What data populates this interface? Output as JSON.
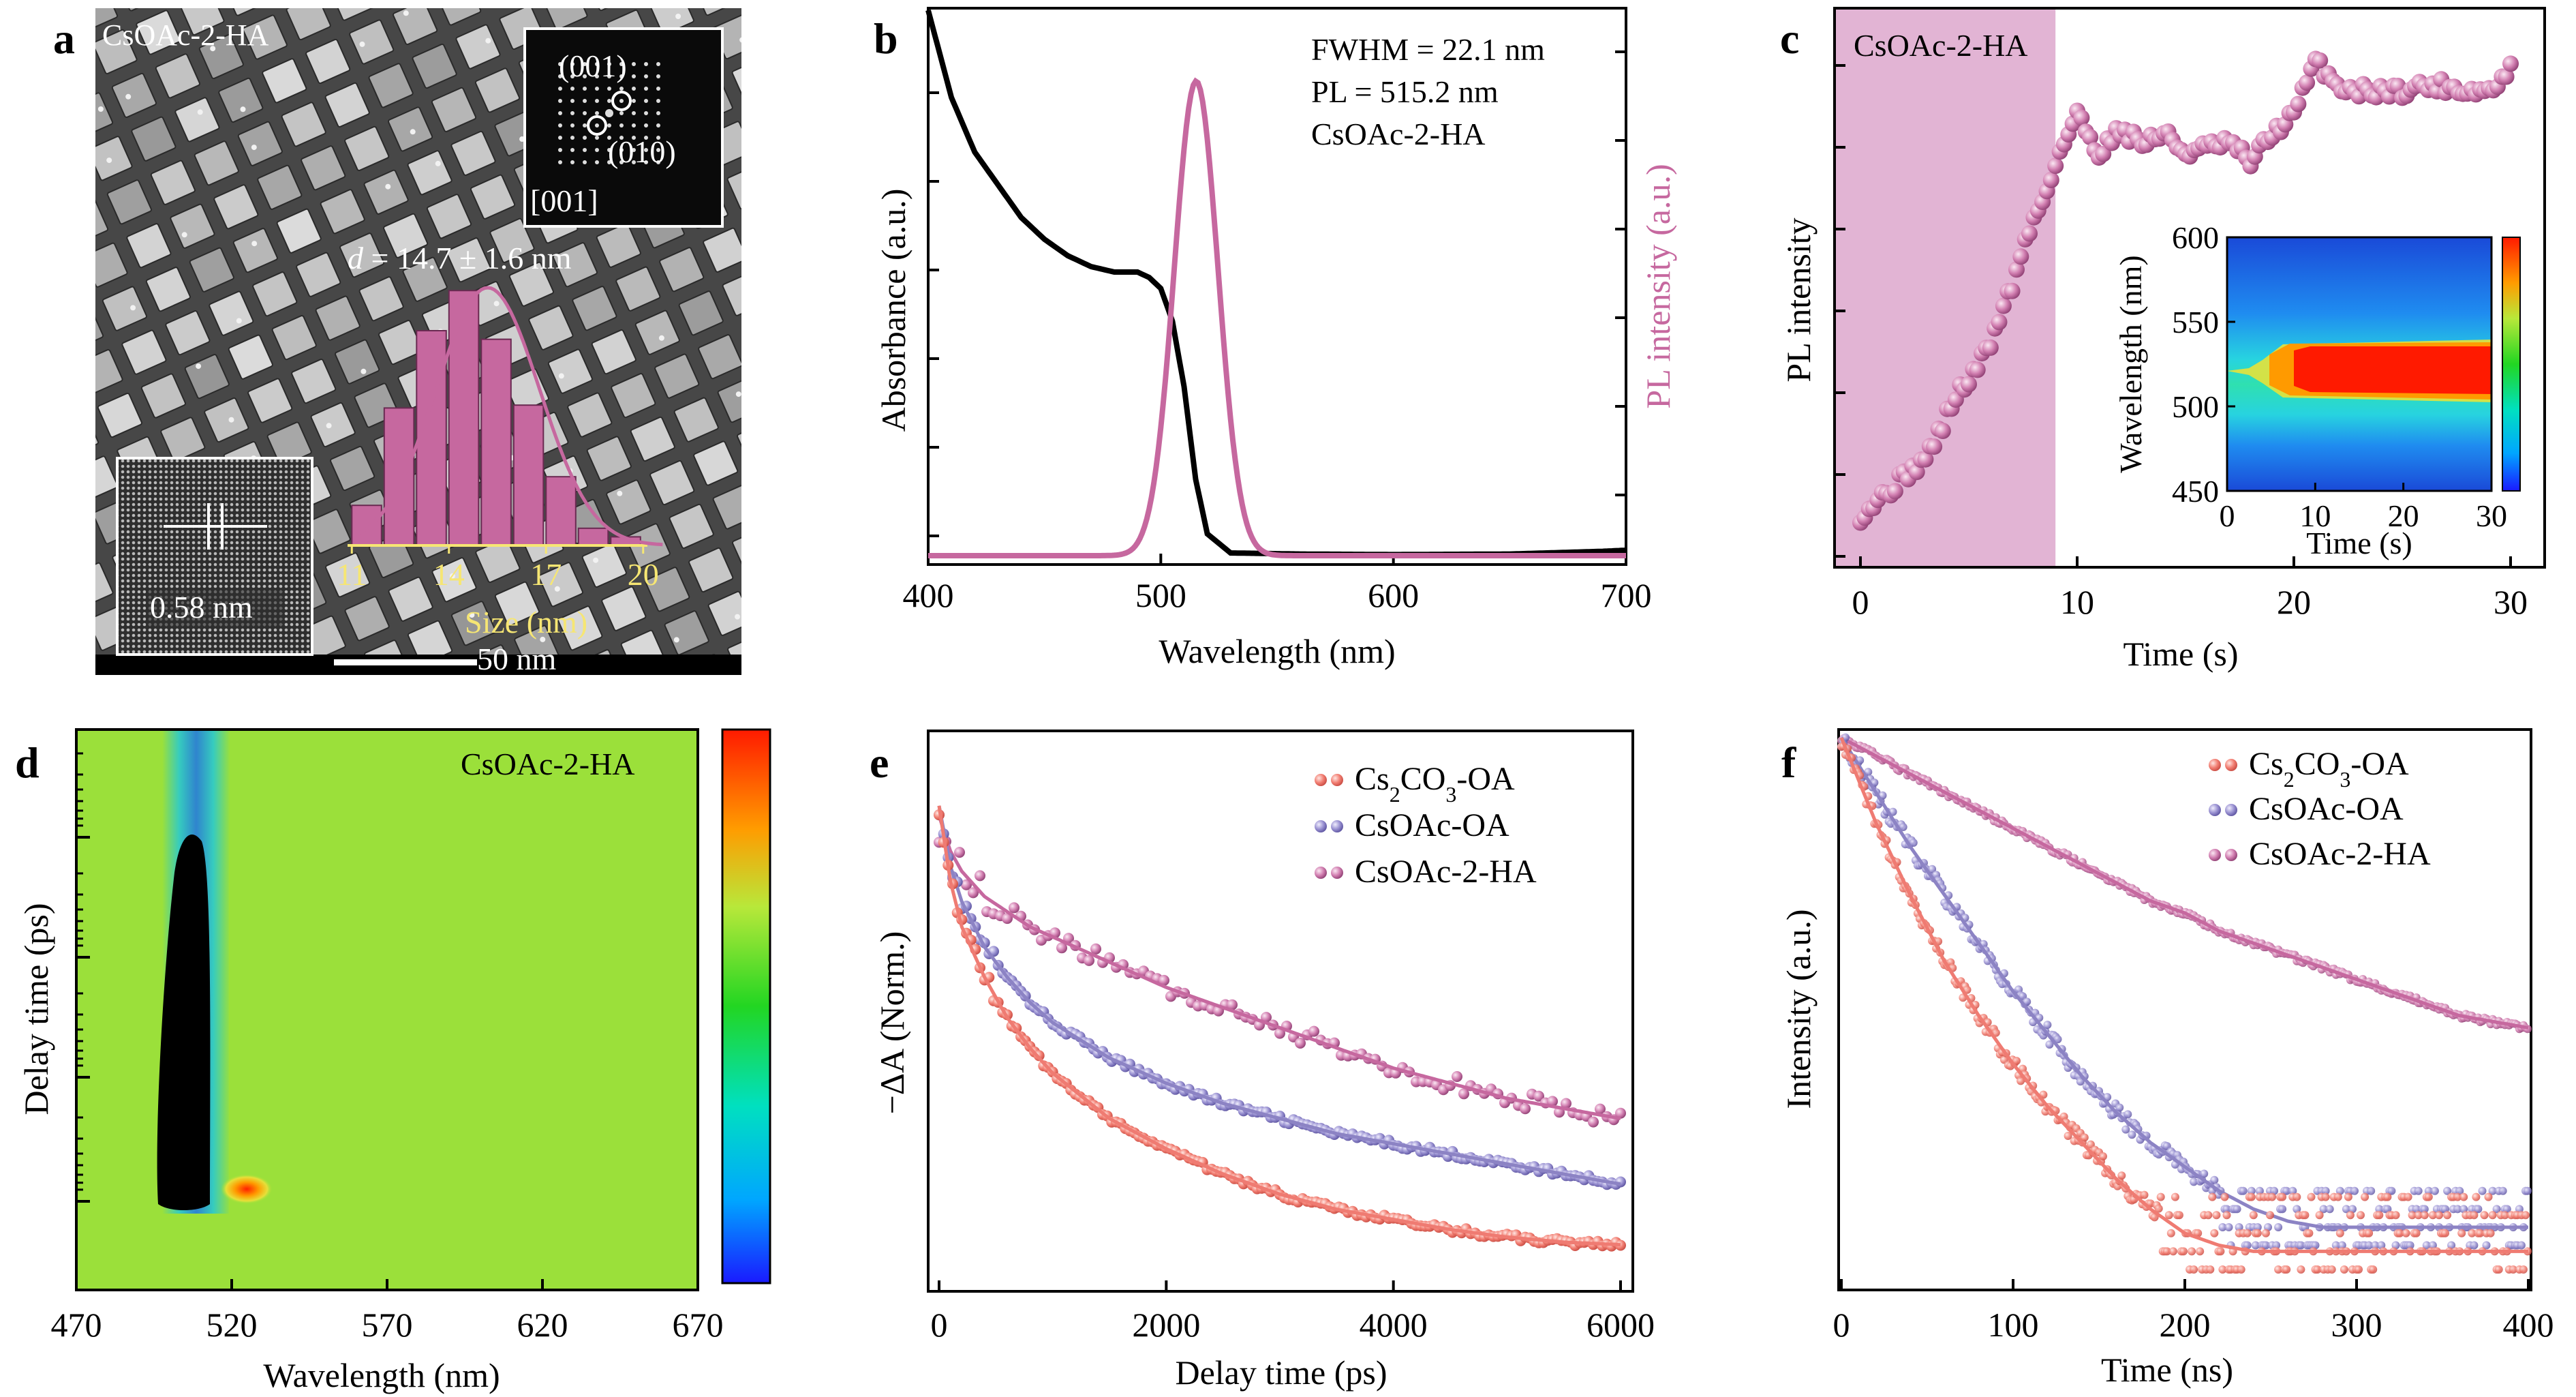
{
  "colors": {
    "black": "#000000",
    "pink": "#c6689f",
    "pink_fill": "#e2b4d4",
    "salmon": "#ef7b72",
    "lavender": "#8c83c4",
    "yellow": "#f6e673",
    "green_bg": "#9be03a"
  },
  "panel_a": {
    "letter": "a",
    "sample_label": "CsOAc-2-HA",
    "fft_labels": [
      "(001)",
      "(010)",
      "[001]"
    ],
    "d_label_italic": "d",
    "d_label_rest": " = 14.7 ± 1.6 nm",
    "lattice_label": "0.58 nm",
    "scale_label": "50 nm",
    "hist_xlabel": "Size (nm)",
    "hist_ticks": [
      "11",
      "14",
      "17",
      "20"
    ]
  },
  "panel_b": {
    "letter": "b",
    "annotations": [
      "FWHM = 22.1 nm",
      "PL = 515.2 nm",
      "CsOAc-2-HA"
    ],
    "xlabel": "Wavelength (nm)",
    "ylabel_left": "Absorbance (a.u.)",
    "ylabel_right": "PL intensity (a.u.)",
    "xticks": [
      "400",
      "500",
      "600",
      "700"
    ]
  },
  "panel_c": {
    "letter": "c",
    "shade_label": "CsOAc-2-HA",
    "xlabel": "Time (s)",
    "ylabel": "PL intensity",
    "xticks": [
      "0",
      "10",
      "20",
      "30"
    ],
    "inset_xlabel": "Time (s)",
    "inset_ylabel": "Wavelength (nm)",
    "inset_xticks": [
      "0",
      "10",
      "20",
      "30"
    ],
    "inset_yticks": [
      "450",
      "500",
      "550",
      "600"
    ]
  },
  "panel_d": {
    "letter": "d",
    "label": "CsOAc-2-HA",
    "xlabel": "Wavelength (nm)",
    "ylabel": "Delay time (ps)",
    "xticks": [
      "470",
      "520",
      "570",
      "620",
      "670"
    ]
  },
  "panel_e": {
    "letter": "e",
    "xlabel": "Delay time (ps)",
    "ylabel": "−ΔA (Norm.)",
    "xticks": [
      "0",
      "2000",
      "4000",
      "6000"
    ],
    "legend": [
      {
        "base": "Cs",
        "sub1": "2",
        "mid": "CO",
        "sub2": "3",
        "end": "-OA"
      },
      {
        "base": "CsOAc-OA"
      },
      {
        "base": "CsOAc-2-HA"
      }
    ]
  },
  "panel_f": {
    "letter": "f",
    "xlabel": "Time (ns)",
    "ylabel": "Intensity (a.u.)",
    "xticks": [
      "0",
      "100",
      "200",
      "300",
      "400"
    ],
    "legend": [
      {
        "base": "Cs",
        "sub1": "2",
        "mid": "CO",
        "sub2": "3",
        "end": "-OA"
      },
      {
        "base": "CsOAc-OA"
      },
      {
        "base": "CsOAc-2-HA"
      }
    ]
  },
  "chart_data": [
    {
      "panel": "a",
      "type": "bar",
      "xlabel": "Size (nm)",
      "categories": [
        11,
        12,
        13,
        14,
        15,
        16,
        17,
        18,
        19
      ],
      "values": [
        0.14,
        0.48,
        0.75,
        0.89,
        0.72,
        0.49,
        0.24,
        0.06,
        0.03
      ],
      "fit": {
        "shape": "gaussian",
        "mean": 14.7,
        "sd": 1.6
      }
    },
    {
      "panel": "b",
      "type": "line",
      "xlabel": "Wavelength (nm)",
      "xlim": [
        400,
        700
      ],
      "series": [
        {
          "name": "Absorbance (a.u.)",
          "x": [
            400,
            410,
            420,
            430,
            440,
            450,
            460,
            470,
            480,
            490,
            495,
            500,
            505,
            510,
            515,
            520,
            530,
            560,
            600,
            650,
            690,
            700
          ],
          "y": [
            1.0,
            0.84,
            0.74,
            0.68,
            0.62,
            0.58,
            0.55,
            0.53,
            0.52,
            0.52,
            0.51,
            0.49,
            0.43,
            0.31,
            0.14,
            0.04,
            0.005,
            0.003,
            0.002,
            0.003,
            0.008,
            0.01
          ]
        },
        {
          "name": "PL intensity (a.u.)",
          "gaussian": {
            "center": 515.2,
            "fwhm": 22.1,
            "peak": 0.87
          }
        }
      ]
    },
    {
      "panel": "c",
      "type": "scatter",
      "xlabel": "Time (s)",
      "ylabel": "PL intensity",
      "xlim": [
        -1,
        31
      ],
      "shaded_x": [
        -1,
        9
      ],
      "x": [
        0,
        0.5,
        1,
        1.5,
        2,
        2.5,
        3,
        3.5,
        4,
        4.5,
        5,
        5.5,
        6,
        6.5,
        7,
        7.5,
        8,
        8.5,
        9,
        9.5,
        10,
        11,
        12,
        13,
        14,
        15,
        16,
        17,
        18,
        19,
        20,
        21,
        21.5,
        22,
        23,
        24,
        25,
        26,
        27,
        28,
        29,
        29.5,
        30
      ],
      "y": [
        0.02,
        0.04,
        0.06,
        0.08,
        0.1,
        0.12,
        0.14,
        0.18,
        0.23,
        0.28,
        0.3,
        0.34,
        0.38,
        0.45,
        0.5,
        0.58,
        0.64,
        0.69,
        0.76,
        0.81,
        0.86,
        0.78,
        0.83,
        0.8,
        0.82,
        0.78,
        0.79,
        0.8,
        0.76,
        0.82,
        0.86,
        0.97,
        0.95,
        0.92,
        0.91,
        0.91,
        0.91,
        0.92,
        0.92,
        0.91,
        0.91,
        0.92,
        0.97
      ]
    },
    {
      "panel": "c-inset",
      "type": "heatmap",
      "xlabel": "Time (s)",
      "ylabel": "Wavelength (nm)",
      "xlim": [
        0,
        30
      ],
      "ylim": [
        450,
        600
      ],
      "peak_wavelength": 515,
      "peak_onset_time": 7
    },
    {
      "panel": "d",
      "type": "heatmap",
      "xlabel": "Wavelength (nm)",
      "ylabel": "Delay time (ps)",
      "xlim": [
        470,
        670
      ],
      "bleach_center": 507,
      "induced_absorption_center": 521
    },
    {
      "panel": "e",
      "type": "scatter",
      "xlabel": "Delay time (ps)",
      "ylabel": "−ΔA (Norm.)",
      "xlim": [
        -100,
        6000
      ],
      "x": [
        0,
        100,
        200,
        400,
        600,
        800,
        1000,
        1500,
        2000,
        2500,
        3000,
        3500,
        4000,
        4500,
        5000,
        5500,
        6000
      ],
      "series": [
        {
          "name": "Cs2CO3-OA",
          "values": [
            0.93,
            0.78,
            0.69,
            0.59,
            0.51,
            0.45,
            0.4,
            0.31,
            0.25,
            0.2,
            0.16,
            0.13,
            0.11,
            0.09,
            0.075,
            0.065,
            0.06
          ]
        },
        {
          "name": "CsOAc-OA",
          "values": [
            0.93,
            0.81,
            0.74,
            0.65,
            0.59,
            0.54,
            0.5,
            0.43,
            0.38,
            0.34,
            0.31,
            0.28,
            0.26,
            0.24,
            0.22,
            0.2,
            0.18
          ]
        },
        {
          "name": "CsOAc-2-HA",
          "values": [
            0.91,
            0.84,
            0.8,
            0.75,
            0.72,
            0.69,
            0.67,
            0.62,
            0.57,
            0.53,
            0.49,
            0.45,
            0.41,
            0.38,
            0.35,
            0.33,
            0.31
          ]
        }
      ]
    },
    {
      "panel": "f",
      "type": "scatter",
      "xlabel": "Time (ns)",
      "ylabel": "Intensity (a.u.)",
      "xlim": [
        0,
        400
      ],
      "x": [
        0,
        20,
        40,
        60,
        80,
        100,
        120,
        140,
        160,
        180,
        200,
        220,
        240,
        260,
        280,
        300,
        320,
        340,
        360,
        380,
        400
      ],
      "series": [
        {
          "name": "Cs2CO3-OA",
          "values": [
            1.0,
            0.86,
            0.74,
            0.63,
            0.54,
            0.46,
            0.39,
            0.33,
            0.27,
            0.22,
            0.18,
            0.16,
            0.15,
            0.15,
            0.15,
            0.15,
            0.15,
            0.15,
            0.15,
            0.15,
            0.15
          ]
        },
        {
          "name": "CsOAc-OA",
          "values": [
            1.0,
            0.91,
            0.82,
            0.74,
            0.66,
            0.58,
            0.51,
            0.44,
            0.38,
            0.33,
            0.29,
            0.25,
            0.22,
            0.2,
            0.19,
            0.19,
            0.19,
            0.19,
            0.19,
            0.19,
            0.19
          ]
        },
        {
          "name": "CsOAc-2-HA",
          "values": [
            1.0,
            0.97,
            0.94,
            0.91,
            0.88,
            0.85,
            0.82,
            0.79,
            0.76,
            0.73,
            0.71,
            0.68,
            0.66,
            0.64,
            0.62,
            0.6,
            0.58,
            0.56,
            0.54,
            0.53,
            0.52
          ]
        }
      ]
    }
  ]
}
